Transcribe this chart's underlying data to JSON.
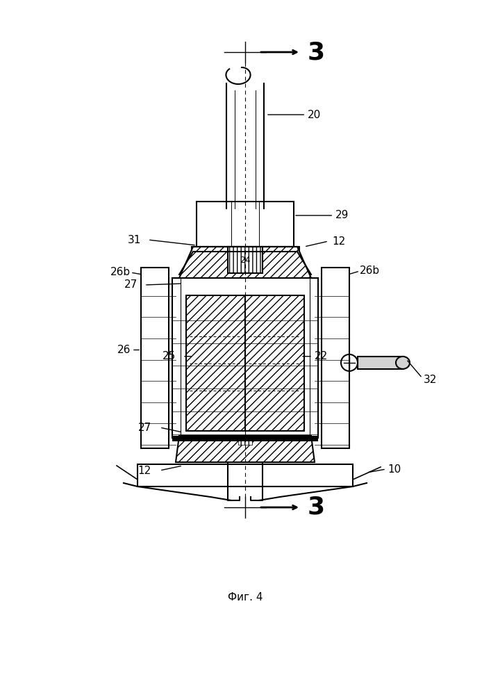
{
  "title": "",
  "caption": "Фиг. 4",
  "bg_color": "#ffffff",
  "line_color": "#000000",
  "labels": {
    "3_top": "3",
    "3_bottom": "3",
    "10": "10",
    "12_top": "12",
    "12_bottom": "12",
    "20": "20",
    "22": "22",
    "24": "24",
    "25": "25",
    "26": "26",
    "26b_left": "26b",
    "26b_right": "26b",
    "27_top": "27",
    "27_bottom": "27",
    "29": "29",
    "31": "31",
    "32": "32"
  }
}
